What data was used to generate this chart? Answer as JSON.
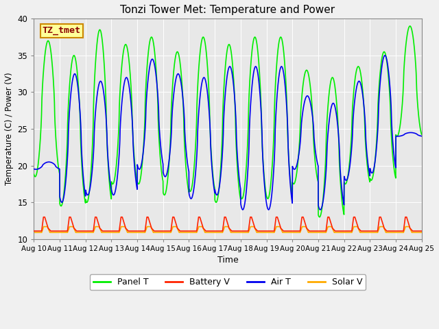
{
  "title": "Tonzi Tower Met: Temperature and Power",
  "xlabel": "Time",
  "ylabel": "Temperature (C) / Power (V)",
  "ylim": [
    10,
    40
  ],
  "xlim": [
    0,
    15
  ],
  "x_tick_labels": [
    "Aug 10",
    "Aug 11",
    "Aug 12",
    "Aug 13",
    "Aug 14",
    "Aug 15",
    "Aug 16",
    "Aug 17",
    "Aug 18",
    "Aug 19",
    "Aug 20",
    "Aug 21",
    "Aug 22",
    "Aug 23",
    "Aug 24",
    "Aug 25"
  ],
  "bg_color": "#e8e8e8",
  "fig_color": "#f0f0f0",
  "annotation_text": "TZ_tmet",
  "annotation_color": "#8b0000",
  "annotation_bg": "#ffff99",
  "annotation_border": "#cc8800",
  "series": {
    "panel_t": {
      "color": "#00ee00",
      "label": "Panel T",
      "lw": 1.2
    },
    "battery_v": {
      "color": "#ff2200",
      "label": "Battery V",
      "lw": 1.2
    },
    "air_t": {
      "color": "#0000ee",
      "label": "Air T",
      "lw": 1.2
    },
    "solar_v": {
      "color": "#ffaa00",
      "label": "Solar V",
      "lw": 1.2
    }
  },
  "panel_t_peaks": [
    37.0,
    35.0,
    38.5,
    36.5,
    37.5,
    35.5,
    37.5,
    36.5,
    37.5,
    37.5,
    33.0,
    32.0,
    33.5,
    35.5,
    39.0
  ],
  "panel_t_troughs": [
    18.5,
    14.5,
    15.0,
    17.5,
    17.5,
    16.0,
    16.5,
    15.0,
    15.5,
    15.5,
    17.5,
    13.0,
    17.5,
    18.0,
    24.0
  ],
  "air_t_peaks": [
    20.5,
    32.5,
    31.5,
    32.0,
    34.5,
    32.5,
    32.0,
    33.5,
    33.5,
    33.5,
    29.5,
    28.5,
    31.5,
    35.0,
    24.5
  ],
  "air_t_troughs": [
    19.5,
    15.0,
    16.0,
    16.0,
    19.5,
    18.5,
    15.5,
    16.0,
    14.0,
    14.0,
    19.5,
    14.0,
    18.0,
    19.0,
    24.0
  ],
  "panel_phase": 0.55,
  "air_phase": 0.58,
  "grid_color": "#ffffff",
  "n_per_day": 200
}
